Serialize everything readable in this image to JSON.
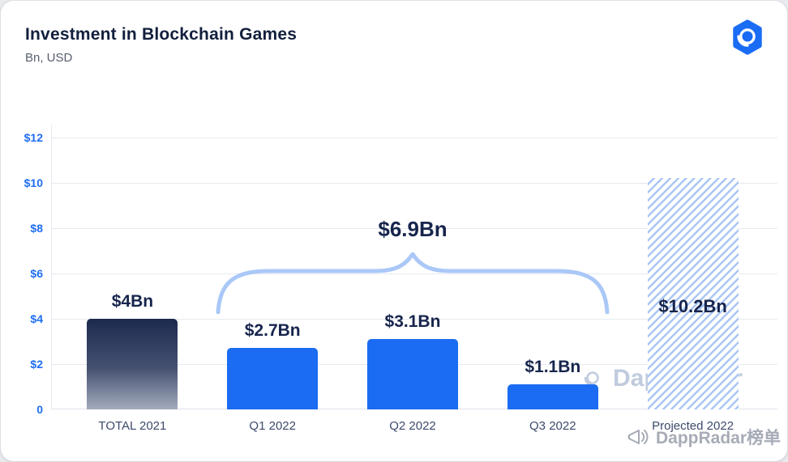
{
  "chart_data": {
    "type": "bar",
    "title": "Investment in Blockchain Games",
    "units": "Bn, USD",
    "categories": [
      "TOTAL 2021",
      "Q1 2022",
      "Q2 2022",
      "Q3 2022",
      "Projected 2022"
    ],
    "values": [
      4,
      2.7,
      3.1,
      1.1,
      10.2
    ],
    "value_labels": [
      "$4Bn",
      "$2.7Bn",
      "$3.1Bn",
      "$1.1Bn",
      "$10.2Bn"
    ],
    "bar_styles": [
      "gradient-navy",
      "solid-blue",
      "solid-blue",
      "solid-blue",
      "hatched-projection"
    ],
    "annotation": {
      "label": "$6.9Bn",
      "covers": [
        "Q1 2022",
        "Q2 2022",
        "Q3 2022"
      ],
      "sum_bn": 6.9
    },
    "y_tick_labels": [
      "$12",
      "$10",
      "$8",
      "$6",
      "$4",
      "$2",
      "0"
    ],
    "y_tick_values": [
      12,
      10,
      8,
      6,
      4,
      2,
      0
    ],
    "ylim": [
      0,
      12
    ],
    "grid": true,
    "legend": false,
    "colors": {
      "bar_blue": "#1b6cf2",
      "gradient_top": "#1c2a4e",
      "gradient_bottom": "#a3abbc",
      "hatch_stripe": "#a9c7f5",
      "axis_tick": "#1f6ef2",
      "value_label": "#17254d",
      "brace": "#aac8f7",
      "category_label": "#3d4a6b",
      "logo_blue": "#1a6cf4"
    }
  },
  "watermarks": {
    "center": "DappRadar",
    "bottom_right": "DappRadar榜单"
  }
}
